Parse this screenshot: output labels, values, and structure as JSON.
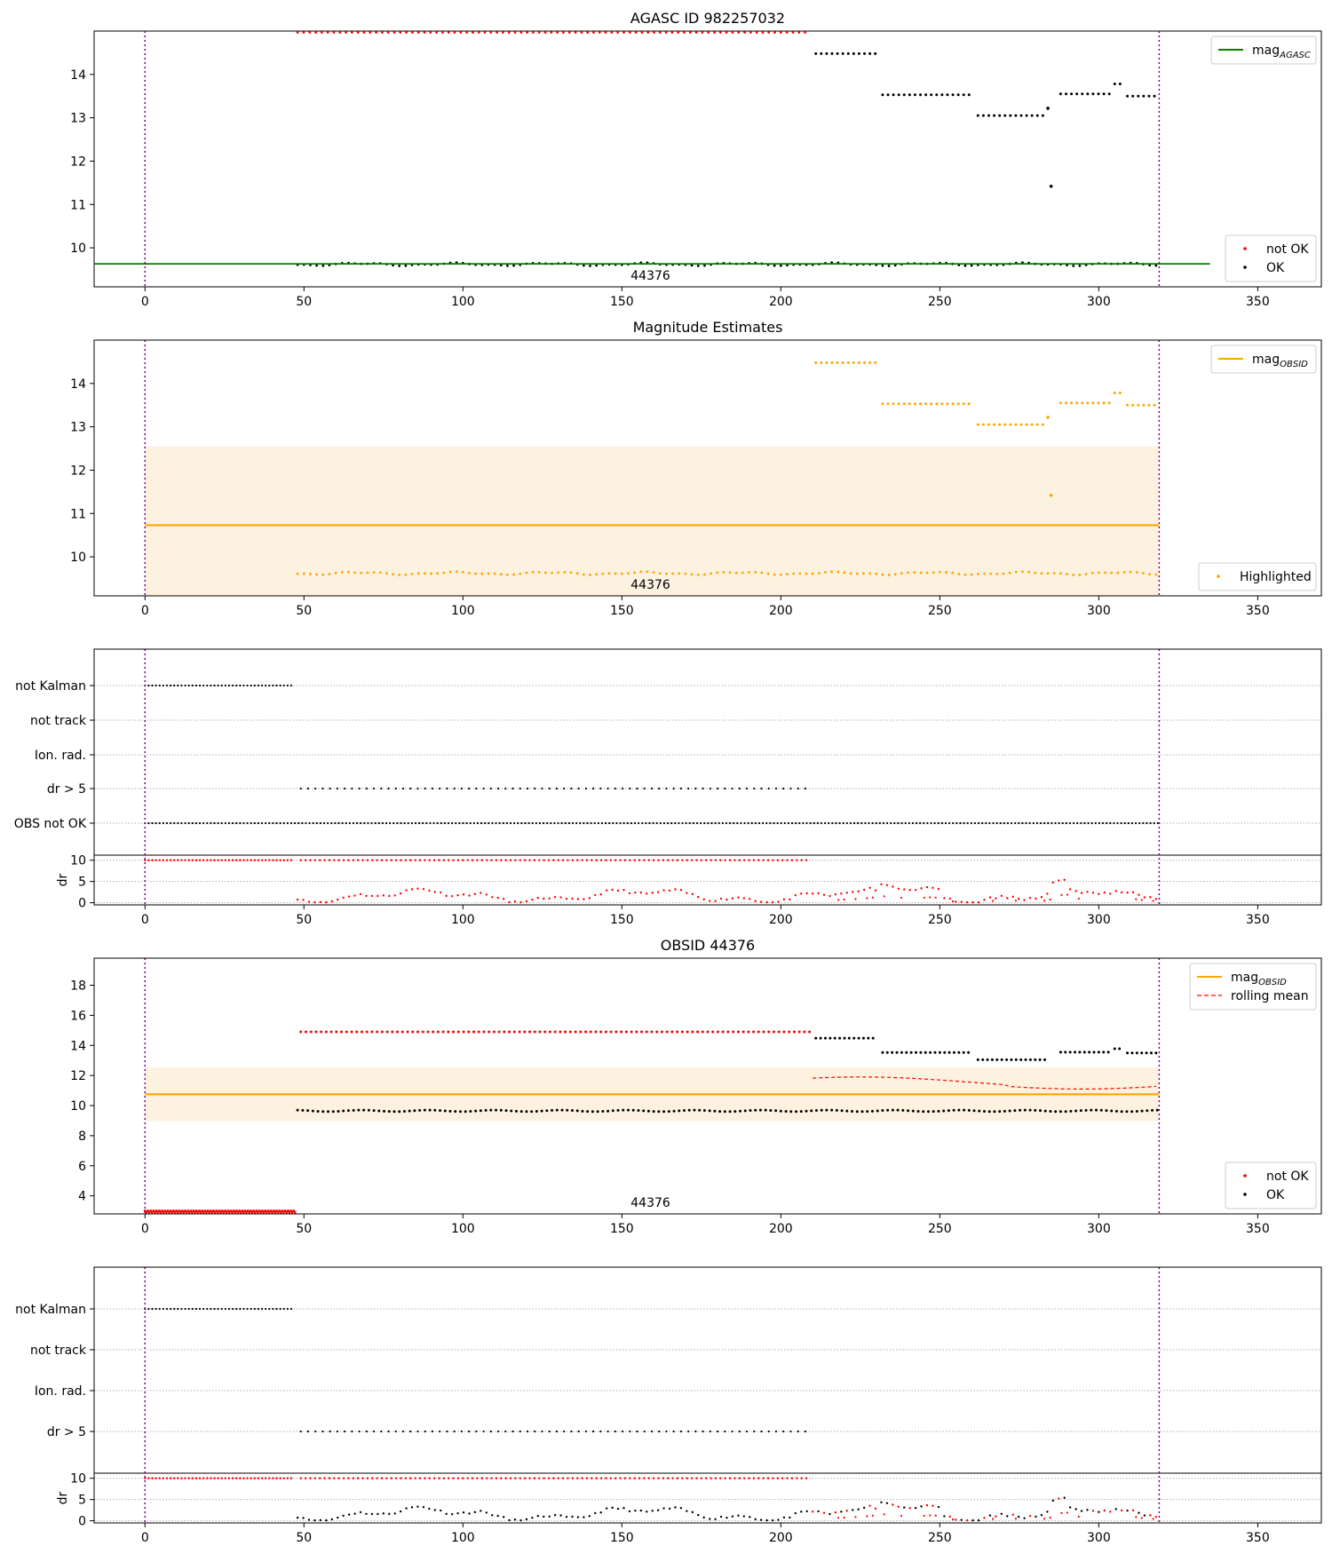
{
  "chart_data": [
    {
      "type": "scatter",
      "title": "AGASC ID 982257032",
      "xlim": [
        -16,
        370
      ],
      "ylim": [
        9.1,
        15.0
      ],
      "xticks": [
        0,
        50,
        100,
        150,
        200,
        250,
        300,
        350
      ],
      "yticks": [
        10,
        11,
        12,
        13,
        14
      ],
      "obsid_label": "44376",
      "obs_start": 0,
      "obs_end": 319,
      "lines": [
        {
          "name": "mag_AGASC",
          "label_main": "mag",
          "label_sub": "AGASC",
          "x": [
            -16,
            335
          ],
          "y": [
            9.63,
            9.63
          ],
          "color": "#008000",
          "style": "solid"
        }
      ],
      "legends": [
        {
          "position": "upper-right",
          "entries": [
            {
              "kind": "line",
              "label_main": "mag",
              "label_sub": "AGASC",
              "color": "#008000"
            }
          ]
        },
        {
          "position": "lower-right",
          "entries": [
            {
              "kind": "marker",
              "label": "not OK",
              "color": "#ff0000"
            },
            {
              "kind": "marker",
              "label": "OK",
              "color": "#000000"
            }
          ]
        }
      ]
    },
    {
      "type": "scatter",
      "title": "Magnitude Estimates",
      "xlim": [
        -16,
        370
      ],
      "ylim": [
        9.1,
        15.0
      ],
      "xticks": [
        0,
        50,
        100,
        150,
        200,
        250,
        300,
        350
      ],
      "yticks": [
        10,
        11,
        12,
        13,
        14
      ],
      "obsid_label": "44376",
      "obs_start": 0,
      "obs_end": 319,
      "band": {
        "x": [
          0,
          319
        ],
        "y": [
          8.9,
          12.55
        ],
        "color": "#fdf2e0"
      },
      "lines": [
        {
          "name": "mag_OBSID",
          "label_main": "mag",
          "label_sub": "OBSID",
          "x": [
            0,
            319
          ],
          "y": [
            10.73,
            10.73
          ],
          "color": "#ffa500",
          "style": "solid"
        }
      ],
      "legends": [
        {
          "position": "upper-right",
          "entries": [
            {
              "kind": "line",
              "label_main": "mag",
              "label_sub": "OBSID",
              "color": "#ffa500"
            }
          ]
        },
        {
          "position": "lower-right",
          "entries": [
            {
              "kind": "marker",
              "label": "Highlighted",
              "color": "#ffa500"
            }
          ]
        }
      ]
    },
    {
      "type": "scatter",
      "title": "",
      "xlim": [
        -16,
        370
      ],
      "xticks": [
        0,
        50,
        100,
        150,
        200,
        250,
        300,
        350
      ],
      "obs_start": 0,
      "obs_end": 319,
      "flag_rows": [
        "not Kalman",
        "not track",
        "Ion. rad.",
        "dr > 5",
        "OBS not OK"
      ],
      "flag_spans": [
        {
          "row": "not Kalman",
          "x_start": 0,
          "x_end": 47
        },
        {
          "row": "dr > 5",
          "x_start": 49,
          "x_end": 209
        },
        {
          "row": "OBS not OK",
          "x_start": 0,
          "x_end": 319
        }
      ],
      "dr_panel": {
        "ylabel": "dr",
        "yticks": [
          0,
          5,
          10
        ],
        "ylim": [
          -0.5,
          11.2
        ]
      }
    },
    {
      "type": "scatter",
      "title": "OBSID 44376",
      "xlim": [
        -16,
        370
      ],
      "ylim": [
        2.8,
        19.8
      ],
      "xticks": [
        0,
        50,
        100,
        150,
        200,
        250,
        300,
        350
      ],
      "yticks": [
        4,
        6,
        8,
        10,
        12,
        14,
        16,
        18
      ],
      "obsid_label": "44376",
      "obs_start": 0,
      "obs_end": 319,
      "band": {
        "x": [
          0,
          319
        ],
        "y": [
          8.95,
          12.55
        ],
        "color": "#fdf2e0"
      },
      "lines": [
        {
          "name": "mag_OBSID",
          "label_main": "mag",
          "label_sub": "OBSID",
          "x": [
            0,
            319
          ],
          "y": [
            10.75,
            10.75
          ],
          "color": "#ffa500",
          "style": "solid"
        }
      ],
      "legends": [
        {
          "position": "upper-right",
          "entries": [
            {
              "kind": "line",
              "label_main": "mag",
              "label_sub": "OBSID",
              "color": "#ffa500"
            },
            {
              "kind": "dashed",
              "label": "rolling mean",
              "color": "#ff0000"
            }
          ]
        },
        {
          "position": "lower-right",
          "entries": [
            {
              "kind": "marker",
              "label": "not OK",
              "color": "#ff0000"
            },
            {
              "kind": "marker",
              "label": "OK",
              "color": "#000000"
            }
          ]
        }
      ]
    },
    {
      "type": "scatter",
      "title": "",
      "xlim": [
        -16,
        370
      ],
      "xticks": [
        0,
        50,
        100,
        150,
        200,
        250,
        300,
        350
      ],
      "obs_start": 0,
      "obs_end": 319,
      "flag_rows": [
        "not Kalman",
        "not track",
        "Ion. rad.",
        "dr > 5"
      ],
      "flag_spans": [
        {
          "row": "not Kalman",
          "x_start": 0,
          "x_end": 47
        },
        {
          "row": "dr > 5",
          "x_start": 49,
          "x_end": 209
        }
      ],
      "dr_panel": {
        "ylabel": "dr",
        "yticks": [
          0,
          5,
          10
        ],
        "ylim": [
          -0.5,
          11.2
        ]
      }
    }
  ]
}
